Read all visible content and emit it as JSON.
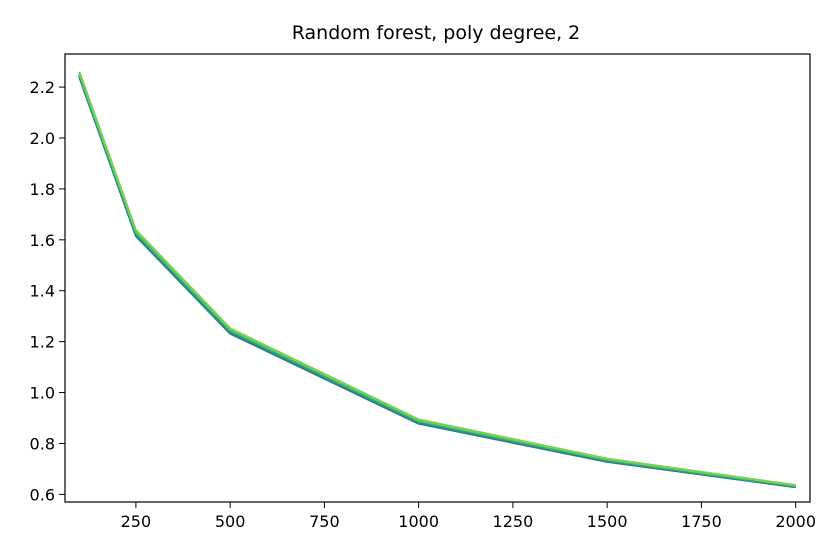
{
  "chart_data": {
    "type": "line",
    "title": "Random forest, poly degree, 2",
    "xlabel": "",
    "ylabel": "",
    "x": [
      100,
      250,
      500,
      1000,
      1500,
      2000
    ],
    "series": [
      {
        "color": "#3a6f8f",
        "values": [
          2.24,
          1.615,
          1.232,
          0.878,
          0.728,
          0.628
        ]
      },
      {
        "color": "#2a8a86",
        "values": [
          2.245,
          1.62,
          1.237,
          0.882,
          0.731,
          0.63
        ]
      },
      {
        "color": "#22a884",
        "values": [
          2.25,
          1.625,
          1.242,
          0.886,
          0.734,
          0.632
        ]
      },
      {
        "color": "#4ec36b",
        "values": [
          2.255,
          1.632,
          1.247,
          0.89,
          0.737,
          0.634
        ]
      },
      {
        "color": "#7ad151",
        "values": [
          2.26,
          1.638,
          1.252,
          0.894,
          0.74,
          0.636
        ]
      }
    ],
    "xlim": [
      62,
      2038
    ],
    "ylim": [
      0.57,
      2.33
    ],
    "xticks": [
      250,
      500,
      750,
      1000,
      1250,
      1500,
      1750,
      2000
    ],
    "xtick_labels": [
      "250",
      "500",
      "750",
      "1000",
      "1250",
      "1500",
      "1750",
      "2000"
    ],
    "yticks": [
      0.6,
      0.8,
      1.0,
      1.2,
      1.4,
      1.6,
      1.8,
      2.0,
      2.2
    ],
    "ytick_labels": [
      "0.6",
      "0.8",
      "1.0",
      "1.2",
      "1.4",
      "1.6",
      "1.8",
      "2.0",
      "2.2"
    ],
    "grid": false,
    "legend": "none"
  }
}
